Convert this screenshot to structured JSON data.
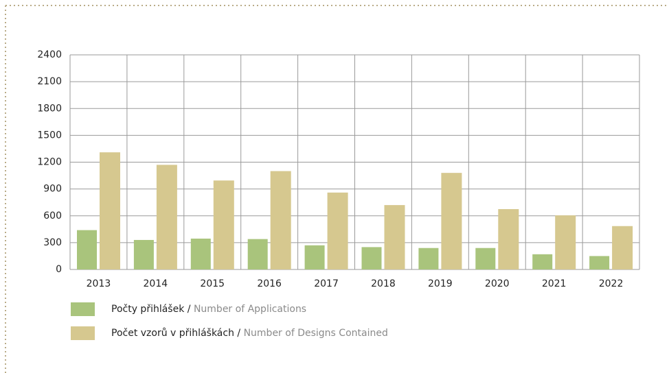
{
  "chart_data": {
    "type": "bar",
    "categories": [
      "2013",
      "2014",
      "2015",
      "2016",
      "2017",
      "2018",
      "2019",
      "2020",
      "2021",
      "2022"
    ],
    "series": [
      {
        "name": "Počty přihlášek",
        "name_translation": "Number of Applications",
        "color": "#a9c47c",
        "values": [
          440,
          330,
          345,
          340,
          270,
          250,
          240,
          240,
          170,
          150
        ]
      },
      {
        "name": "Počet vzorů v přihláškách",
        "name_translation": "Number of Designs Contained",
        "color": "#d6c88f",
        "values": [
          1310,
          1170,
          995,
          1100,
          860,
          720,
          1080,
          675,
          605,
          485
        ]
      }
    ],
    "legend_separator": "/",
    "ylim": [
      0,
      2400
    ],
    "yticks": [
      0,
      300,
      600,
      900,
      1200,
      1500,
      1800,
      2100,
      2400
    ],
    "grid": true
  }
}
